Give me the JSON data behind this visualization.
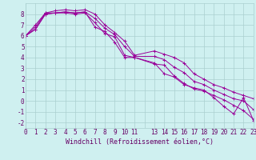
{
  "xlabel": "Windchill (Refroidissement éolien,°C)",
  "background_color": "#cff0f0",
  "grid_color": "#aacfcf",
  "line_color": "#990099",
  "xlim": [
    0,
    23
  ],
  "ylim": [
    -2.5,
    9.0
  ],
  "xticks": [
    0,
    1,
    2,
    3,
    4,
    5,
    6,
    7,
    8,
    9,
    10,
    11,
    12,
    13,
    14,
    15,
    16,
    17,
    18,
    19,
    20,
    21,
    22,
    23
  ],
  "xtick_labels": [
    "0",
    "1",
    "2",
    "3",
    "4",
    "5",
    "6",
    "7",
    "8",
    "9",
    "10",
    "11",
    "",
    "13",
    "14",
    "15",
    "16",
    "17",
    "18",
    "19",
    "20",
    "21",
    "22",
    "23"
  ],
  "yticks": [
    -2,
    -1,
    0,
    1,
    2,
    3,
    4,
    5,
    6,
    7,
    8
  ],
  "line1_x": [
    0,
    1,
    2,
    3,
    4,
    5,
    6,
    7,
    8,
    9,
    10,
    11,
    13,
    14,
    15,
    16,
    17,
    18,
    19,
    20,
    21,
    22,
    23
  ],
  "line1_y": [
    6.0,
    7.0,
    8.1,
    8.1,
    8.2,
    8.1,
    8.2,
    6.8,
    6.4,
    5.4,
    4.0,
    4.0,
    3.5,
    2.5,
    2.2,
    1.5,
    1.2,
    1.0,
    0.3,
    -0.5,
    -1.2,
    0.3,
    -1.8
  ],
  "line2_x": [
    0,
    1,
    2,
    3,
    4,
    5,
    6,
    7,
    8,
    9,
    10,
    11,
    13,
    14,
    15,
    16,
    17,
    18,
    19,
    20,
    21,
    22,
    23
  ],
  "line2_y": [
    6.0,
    6.8,
    8.1,
    8.3,
    8.4,
    8.3,
    8.4,
    8.0,
    7.0,
    6.3,
    5.5,
    4.2,
    4.6,
    4.3,
    4.0,
    3.5,
    2.5,
    2.0,
    1.5,
    1.2,
    0.8,
    0.5,
    0.2
  ],
  "line3_x": [
    0,
    1,
    2,
    3,
    4,
    5,
    6,
    7,
    8,
    9,
    10,
    11,
    13,
    14,
    15,
    16,
    17,
    18,
    19,
    20,
    21,
    22,
    23
  ],
  "line3_y": [
    6.0,
    6.6,
    8.0,
    8.1,
    8.1,
    8.0,
    8.1,
    7.2,
    6.2,
    5.9,
    4.2,
    4.0,
    3.4,
    3.3,
    2.3,
    1.6,
    1.1,
    0.9,
    0.5,
    0.1,
    -0.4,
    -0.9,
    -1.7
  ],
  "line4_x": [
    0,
    1,
    2,
    3,
    4,
    5,
    6,
    7,
    8,
    9,
    10,
    11,
    13,
    14,
    15,
    16,
    17,
    18,
    19,
    20,
    21,
    22,
    23
  ],
  "line4_y": [
    6.0,
    6.6,
    8.0,
    8.1,
    8.2,
    8.1,
    8.2,
    7.6,
    6.7,
    6.1,
    5.0,
    4.1,
    4.1,
    3.8,
    3.1,
    2.6,
    1.8,
    1.5,
    1.0,
    0.6,
    0.2,
    0.0,
    -0.8
  ],
  "xlabel_color": "#660066",
  "xlabel_fontsize": 6.0,
  "tick_fontsize": 5.5
}
